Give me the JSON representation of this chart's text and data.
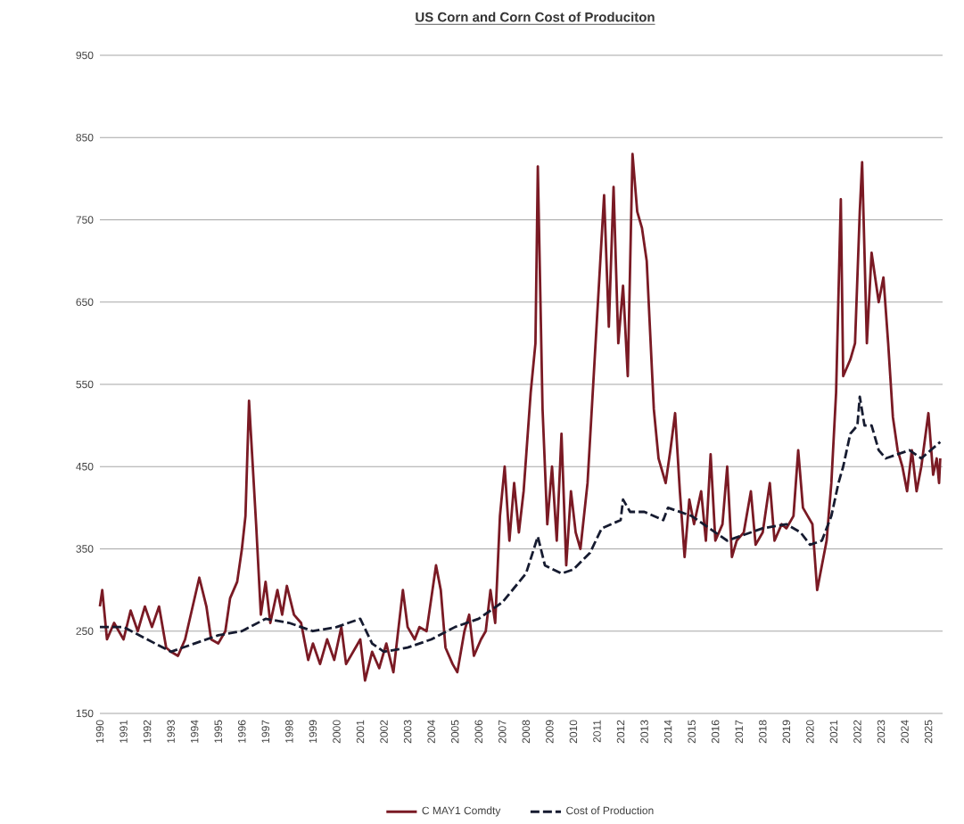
{
  "chart_data": {
    "type": "line",
    "title": "US Corn and Corn Cost of Produciton",
    "xlim": [
      1990,
      2025.6
    ],
    "xticks": [
      1990,
      1991,
      1992,
      1993,
      1994,
      1995,
      1996,
      1997,
      1998,
      1999,
      2000,
      2001,
      2002,
      2003,
      2004,
      2005,
      2006,
      2007,
      2008,
      2009,
      2010,
      2011,
      2012,
      2013,
      2014,
      2015,
      2016,
      2017,
      2018,
      2019,
      2020,
      2021,
      2022,
      2023,
      2024,
      2025
    ],
    "ylim": [
      150,
      950
    ],
    "yticks": [
      150,
      250,
      350,
      450,
      550,
      650,
      750,
      850,
      950
    ],
    "grid": "y",
    "legend": "bottom",
    "series": [
      {
        "name": "C MAY1 Comdty",
        "color": "#7a1a24",
        "line_style": "solid",
        "x": [
          1990.0,
          1990.1,
          1990.3,
          1990.6,
          1991.0,
          1991.3,
          1991.6,
          1991.9,
          1992.2,
          1992.5,
          1992.8,
          1993.0,
          1993.3,
          1993.6,
          1993.8,
          1994.0,
          1994.2,
          1994.5,
          1994.7,
          1995.0,
          1995.3,
          1995.5,
          1995.8,
          1996.0,
          1996.15,
          1996.3,
          1996.6,
          1996.8,
          1997.0,
          1997.2,
          1997.5,
          1997.7,
          1997.9,
          1998.2,
          1998.5,
          1998.8,
          1999.0,
          1999.3,
          1999.6,
          1999.9,
          2000.2,
          2000.4,
          2000.8,
          2001.0,
          2001.2,
          2001.5,
          2001.8,
          2002.1,
          2002.4,
          2002.6,
          2002.8,
          2003.0,
          2003.3,
          2003.5,
          2003.8,
          2004.0,
          2004.2,
          2004.4,
          2004.6,
          2004.9,
          2005.1,
          2005.4,
          2005.6,
          2005.8,
          2006.1,
          2006.3,
          2006.5,
          2006.7,
          2006.9,
          2007.1,
          2007.3,
          2007.5,
          2007.7,
          2007.9,
          2008.2,
          2008.4,
          2008.5,
          2008.7,
          2008.9,
          2009.1,
          2009.3,
          2009.5,
          2009.7,
          2009.9,
          2010.1,
          2010.3,
          2010.6,
          2010.9,
          2011.0,
          2011.3,
          2011.5,
          2011.7,
          2011.9,
          2012.1,
          2012.3,
          2012.5,
          2012.7,
          2012.9,
          2013.1,
          2013.4,
          2013.6,
          2013.9,
          2014.1,
          2014.3,
          2014.5,
          2014.7,
          2014.9,
          2015.1,
          2015.4,
          2015.6,
          2015.8,
          2016.0,
          2016.3,
          2016.5,
          2016.7,
          2016.9,
          2017.2,
          2017.5,
          2017.7,
          2018.0,
          2018.3,
          2018.5,
          2018.8,
          2019.0,
          2019.3,
          2019.5,
          2019.7,
          2019.9,
          2020.1,
          2020.3,
          2020.5,
          2020.7,
          2020.9,
          2021.1,
          2021.3,
          2021.4,
          2021.7,
          2021.9,
          2022.1,
          2022.2,
          2022.4,
          2022.6,
          2022.9,
          2023.1,
          2023.3,
          2023.5,
          2023.7,
          2023.9,
          2024.1,
          2024.3,
          2024.5,
          2024.7,
          2025.0,
          2025.2,
          2025.35,
          2025.45,
          2025.5
        ],
        "values": [
          280,
          300,
          240,
          260,
          240,
          275,
          250,
          280,
          255,
          280,
          230,
          225,
          220,
          240,
          265,
          290,
          315,
          280,
          240,
          235,
          250,
          290,
          310,
          350,
          390,
          530,
          380,
          270,
          310,
          260,
          300,
          270,
          305,
          270,
          260,
          215,
          235,
          210,
          240,
          215,
          255,
          210,
          230,
          240,
          190,
          225,
          205,
          235,
          200,
          250,
          300,
          255,
          240,
          255,
          250,
          290,
          330,
          300,
          230,
          210,
          200,
          250,
          270,
          220,
          240,
          250,
          300,
          260,
          390,
          450,
          360,
          430,
          370,
          420,
          540,
          600,
          815,
          520,
          380,
          450,
          360,
          490,
          330,
          420,
          370,
          350,
          430,
          580,
          630,
          780,
          620,
          790,
          600,
          670,
          560,
          830,
          760,
          740,
          700,
          520,
          460,
          430,
          470,
          515,
          420,
          340,
          410,
          380,
          420,
          360,
          465,
          360,
          380,
          450,
          340,
          360,
          370,
          420,
          355,
          370,
          430,
          360,
          380,
          375,
          390,
          470,
          400,
          390,
          380,
          300,
          330,
          360,
          430,
          540,
          775,
          560,
          580,
          600,
          760,
          820,
          600,
          710,
          650,
          680,
          600,
          510,
          470,
          450,
          420,
          470,
          420,
          450,
          515,
          440,
          460,
          430,
          460
        ]
      },
      {
        "name": "Cost of Production",
        "color": "#161b30",
        "line_style": "dashed",
        "x": [
          1990,
          1991,
          1992,
          1993,
          1994,
          1995,
          1996,
          1997,
          1998,
          1999,
          2000,
          2001.0,
          2001.5,
          2002,
          2003,
          2004,
          2005,
          2006,
          2007,
          2008,
          2008.5,
          2008.8,
          2009.5,
          2010,
          2010.7,
          2011.2,
          2012,
          2012.1,
          2012.4,
          2013,
          2013.8,
          2014.0,
          2015,
          2016,
          2016.5,
          2017,
          2018,
          2019,
          2019.6,
          2020,
          2020.5,
          2020.9,
          2021.2,
          2021.4,
          2021.7,
          2022.0,
          2022.1,
          2022.3,
          2022.6,
          2022.9,
          2023.2,
          2023.7,
          2024.2,
          2024.7,
          2025.1,
          2025.5
        ],
        "values": [
          255,
          255,
          240,
          225,
          235,
          245,
          250,
          265,
          260,
          250,
          255,
          265,
          235,
          225,
          230,
          240,
          255,
          265,
          285,
          320,
          365,
          330,
          320,
          325,
          345,
          375,
          385,
          410,
          395,
          395,
          385,
          400,
          390,
          370,
          360,
          365,
          375,
          380,
          370,
          355,
          360,
          390,
          430,
          450,
          490,
          500,
          535,
          500,
          500,
          470,
          460,
          465,
          470,
          460,
          470,
          480
        ]
      }
    ]
  }
}
